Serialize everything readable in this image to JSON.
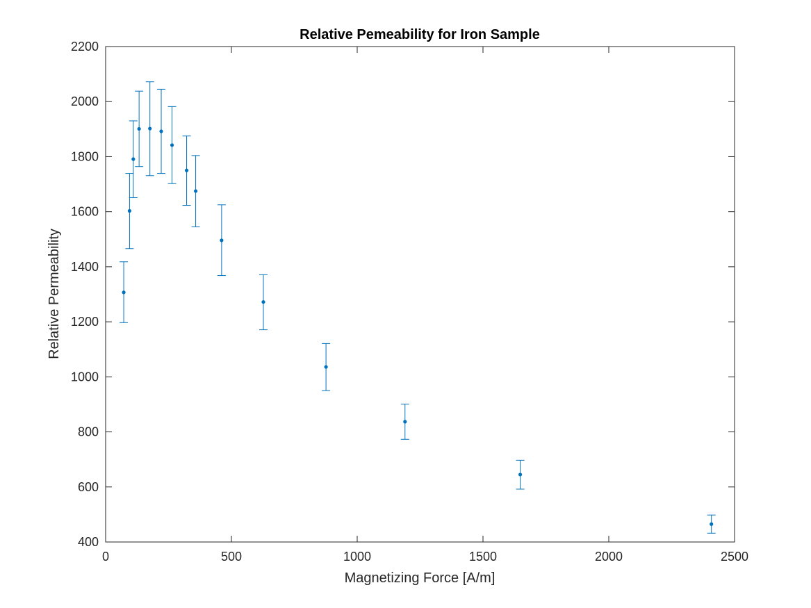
{
  "chart_data": {
    "type": "scatter",
    "title": "Relative Pemeability for Iron Sample",
    "xlabel": "Magnetizing Force [A/m]",
    "ylabel": "Relative Permeability",
    "xlim": [
      0,
      2500
    ],
    "ylim": [
      400,
      2200
    ],
    "xticks": [
      0,
      500,
      1000,
      1500,
      2000,
      2500
    ],
    "yticks": [
      400,
      600,
      800,
      1000,
      1200,
      1400,
      1600,
      1800,
      2000,
      2200
    ],
    "grid": false,
    "series": [
      {
        "color": "#0072BD",
        "points": [
          {
            "x": 72,
            "y": 1307,
            "low": 1197,
            "high": 1418
          },
          {
            "x": 95,
            "y": 1603,
            "low": 1466,
            "high": 1739
          },
          {
            "x": 110,
            "y": 1791,
            "low": 1651,
            "high": 1930
          },
          {
            "x": 133,
            "y": 1901,
            "low": 1764,
            "high": 2038
          },
          {
            "x": 176,
            "y": 1902,
            "low": 1731,
            "high": 2072
          },
          {
            "x": 221,
            "y": 1892,
            "low": 1739,
            "high": 2045
          },
          {
            "x": 264,
            "y": 1842,
            "low": 1702,
            "high": 1982
          },
          {
            "x": 322,
            "y": 1750,
            "low": 1623,
            "high": 1875
          },
          {
            "x": 358,
            "y": 1675,
            "low": 1545,
            "high": 1804
          },
          {
            "x": 461,
            "y": 1496,
            "low": 1368,
            "high": 1625
          },
          {
            "x": 627,
            "y": 1272,
            "low": 1171,
            "high": 1371
          },
          {
            "x": 876,
            "y": 1036,
            "low": 950,
            "high": 1121
          },
          {
            "x": 1190,
            "y": 837,
            "low": 773,
            "high": 901
          },
          {
            "x": 1648,
            "y": 645,
            "low": 592,
            "high": 697
          },
          {
            "x": 2408,
            "y": 465,
            "low": 432,
            "high": 498
          }
        ]
      }
    ]
  }
}
